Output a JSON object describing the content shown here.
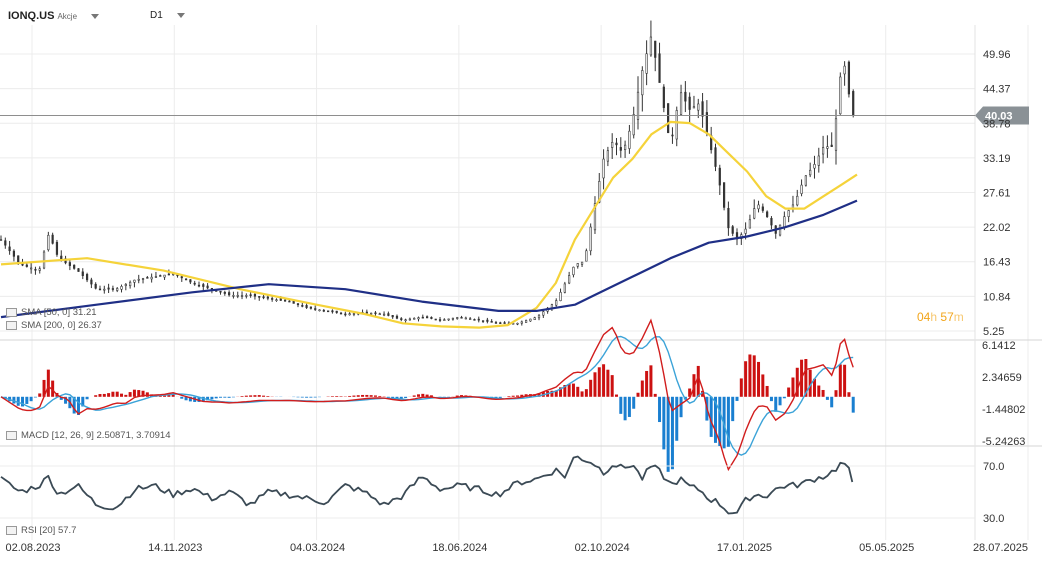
{
  "header": {
    "symbol": "IONQ.US",
    "symbol_sub": "Akcje",
    "timeframe": "D1"
  },
  "timer": {
    "hours": "04",
    "h": "h",
    "minutes": "57",
    "m": "m"
  },
  "indicators": {
    "sma1": "SMA [50, 0] 31.21",
    "sma2": "SMA [200, 0] 26.37",
    "macd_label": "MACD [12, 26, 9]",
    "macd_vals": "2.50871, 3.70914",
    "rsi": "RSI [20] 57.7"
  },
  "colors": {
    "sma50": "#f5d33a",
    "sma200": "#1f2f86",
    "macd": "#d11d1d",
    "signal": "#3ba3d8",
    "hist_pos": "#cc1111",
    "hist_neg": "#1a7fd0",
    "rsi": "#3b4a55",
    "price_label": "#8a9196"
  },
  "chart_data": [
    {
      "type": "candlestick",
      "x_ticks": [
        "02.08.2023",
        "14.11.2023",
        "04.03.2024",
        "18.06.2024",
        "02.10.2024",
        "17.01.2025",
        "05.05.2025",
        "28.07.2025"
      ],
      "y_ticks": [
        49.96,
        44.37,
        38.78,
        33.19,
        27.61,
        22.02,
        16.43,
        10.84,
        5.25
      ],
      "current_price": "40.03",
      "series": [
        {
          "name": "SMA [50, 0]",
          "color": "#f5d33a",
          "points": [
            [
              0,
              16
            ],
            [
              9,
              17
            ],
            [
              17,
              15
            ],
            [
              25,
              12
            ],
            [
              33,
              9.5
            ],
            [
              38,
              8
            ],
            [
              42,
              6.5
            ],
            [
              46,
              6
            ],
            [
              50,
              5.8
            ],
            [
              53,
              6.2
            ],
            [
              56,
              9
            ],
            [
              58,
              13
            ],
            [
              60,
              20
            ],
            [
              62,
              25
            ],
            [
              64,
              30
            ],
            [
              66,
              33
            ],
            [
              68,
              37
            ],
            [
              70,
              39
            ],
            [
              72,
              38.8
            ],
            [
              74,
              37
            ],
            [
              76,
              34
            ],
            [
              78,
              31
            ],
            [
              80,
              27
            ],
            [
              82,
              25
            ],
            [
              84,
              25
            ],
            [
              86,
              27
            ],
            [
              88,
              29
            ],
            [
              89.5,
              30.5
            ]
          ]
        },
        {
          "name": "SMA [200, 0]",
          "color": "#1f2f86",
          "points": [
            [
              0,
              7.5
            ],
            [
              10,
              9.5
            ],
            [
              20,
              11.5
            ],
            [
              28,
              12.8
            ],
            [
              36,
              12
            ],
            [
              44,
              10
            ],
            [
              52,
              8.5
            ],
            [
              56,
              8.5
            ],
            [
              60,
              9.5
            ],
            [
              62,
              11
            ],
            [
              66,
              14
            ],
            [
              70,
              17
            ],
            [
              74,
              19.5
            ],
            [
              78,
              20.5
            ],
            [
              82,
              22
            ],
            [
              86,
              24
            ],
            [
              89.5,
              26.3
            ]
          ]
        }
      ],
      "close": [
        [
          0,
          20
        ],
        [
          2,
          16
        ],
        [
          4,
          15
        ],
        [
          5,
          21
        ],
        [
          6,
          17
        ],
        [
          8,
          15
        ],
        [
          10,
          12
        ],
        [
          12,
          12
        ],
        [
          14,
          13.5
        ],
        [
          16,
          14
        ],
        [
          18,
          14.5
        ],
        [
          20,
          13
        ],
        [
          22,
          12
        ],
        [
          24,
          11
        ],
        [
          26,
          11
        ],
        [
          28,
          10.5
        ],
        [
          30,
          10
        ],
        [
          32,
          9
        ],
        [
          34,
          8.5
        ],
        [
          36,
          8
        ],
        [
          38,
          8.2
        ],
        [
          40,
          8
        ],
        [
          42,
          7
        ],
        [
          44,
          7.5
        ],
        [
          46,
          7
        ],
        [
          48,
          7.5
        ],
        [
          50,
          7
        ],
        [
          52,
          6.5
        ],
        [
          54,
          6.5
        ],
        [
          56,
          7.5
        ],
        [
          58,
          10
        ],
        [
          60,
          16
        ],
        [
          61,
          16.5
        ],
        [
          62,
          25
        ],
        [
          63,
          33
        ],
        [
          64,
          36
        ],
        [
          65,
          34
        ],
        [
          66,
          39
        ],
        [
          67,
          47
        ],
        [
          68,
          53
        ],
        [
          69,
          44
        ],
        [
          70,
          35
        ],
        [
          71,
          44
        ],
        [
          72,
          41
        ],
        [
          73,
          42
        ],
        [
          74,
          36
        ],
        [
          75,
          30
        ],
        [
          76,
          22
        ],
        [
          77,
          20
        ],
        [
          78,
          22
        ],
        [
          79,
          26
        ],
        [
          80,
          24
        ],
        [
          81,
          21
        ],
        [
          82,
          24
        ],
        [
          83,
          26
        ],
        [
          84,
          30
        ],
        [
          85,
          32
        ],
        [
          86,
          35
        ],
        [
          87,
          35
        ],
        [
          88,
          50
        ],
        [
          88.5,
          45
        ],
        [
          89,
          40
        ],
        [
          89.5,
          40.03
        ]
      ]
    },
    {
      "type": "bar",
      "name": "MACD [12, 26, 9]",
      "y_ticks": [
        6.1412,
        2.34659,
        -1.44802,
        -5.24263
      ],
      "values": {
        "macd": 2.50871,
        "signal": 3.70914
      }
    },
    {
      "type": "line",
      "name": "RSI [20]",
      "y_ticks": [
        70.0,
        30.0
      ],
      "values": [
        [
          0,
          60
        ],
        [
          2,
          50
        ],
        [
          4,
          55
        ],
        [
          5,
          62
        ],
        [
          6,
          48
        ],
        [
          8,
          55
        ],
        [
          10,
          40
        ],
        [
          12,
          38
        ],
        [
          14,
          52
        ],
        [
          16,
          55
        ],
        [
          18,
          48
        ],
        [
          20,
          53
        ],
        [
          22,
          45
        ],
        [
          24,
          50
        ],
        [
          26,
          40
        ],
        [
          28,
          50
        ],
        [
          30,
          48
        ],
        [
          32,
          45
        ],
        [
          34,
          42
        ],
        [
          36,
          55
        ],
        [
          38,
          50
        ],
        [
          40,
          40
        ],
        [
          42,
          47
        ],
        [
          44,
          62
        ],
        [
          46,
          52
        ],
        [
          48,
          55
        ],
        [
          50,
          52
        ],
        [
          52,
          48
        ],
        [
          54,
          57
        ],
        [
          56,
          60
        ],
        [
          58,
          67
        ],
        [
          59,
          62
        ],
        [
          60,
          78
        ],
        [
          61,
          75
        ],
        [
          62,
          72
        ],
        [
          63,
          65
        ],
        [
          64,
          72
        ],
        [
          65,
          68
        ],
        [
          66,
          72
        ],
        [
          67,
          60
        ],
        [
          68,
          70
        ],
        [
          69,
          65
        ],
        [
          70,
          55
        ],
        [
          71,
          60
        ],
        [
          72,
          54
        ],
        [
          73,
          52
        ],
        [
          74,
          45
        ],
        [
          75,
          42
        ],
        [
          76,
          35
        ],
        [
          77,
          34
        ],
        [
          78,
          45
        ],
        [
          79,
          48
        ],
        [
          80,
          47
        ],
        [
          81,
          52
        ],
        [
          82,
          55
        ],
        [
          83,
          55
        ],
        [
          84,
          57
        ],
        [
          85,
          60
        ],
        [
          86,
          62
        ],
        [
          87,
          66
        ],
        [
          88,
          73
        ],
        [
          88.5,
          70
        ],
        [
          89,
          57.7
        ]
      ]
    }
  ]
}
